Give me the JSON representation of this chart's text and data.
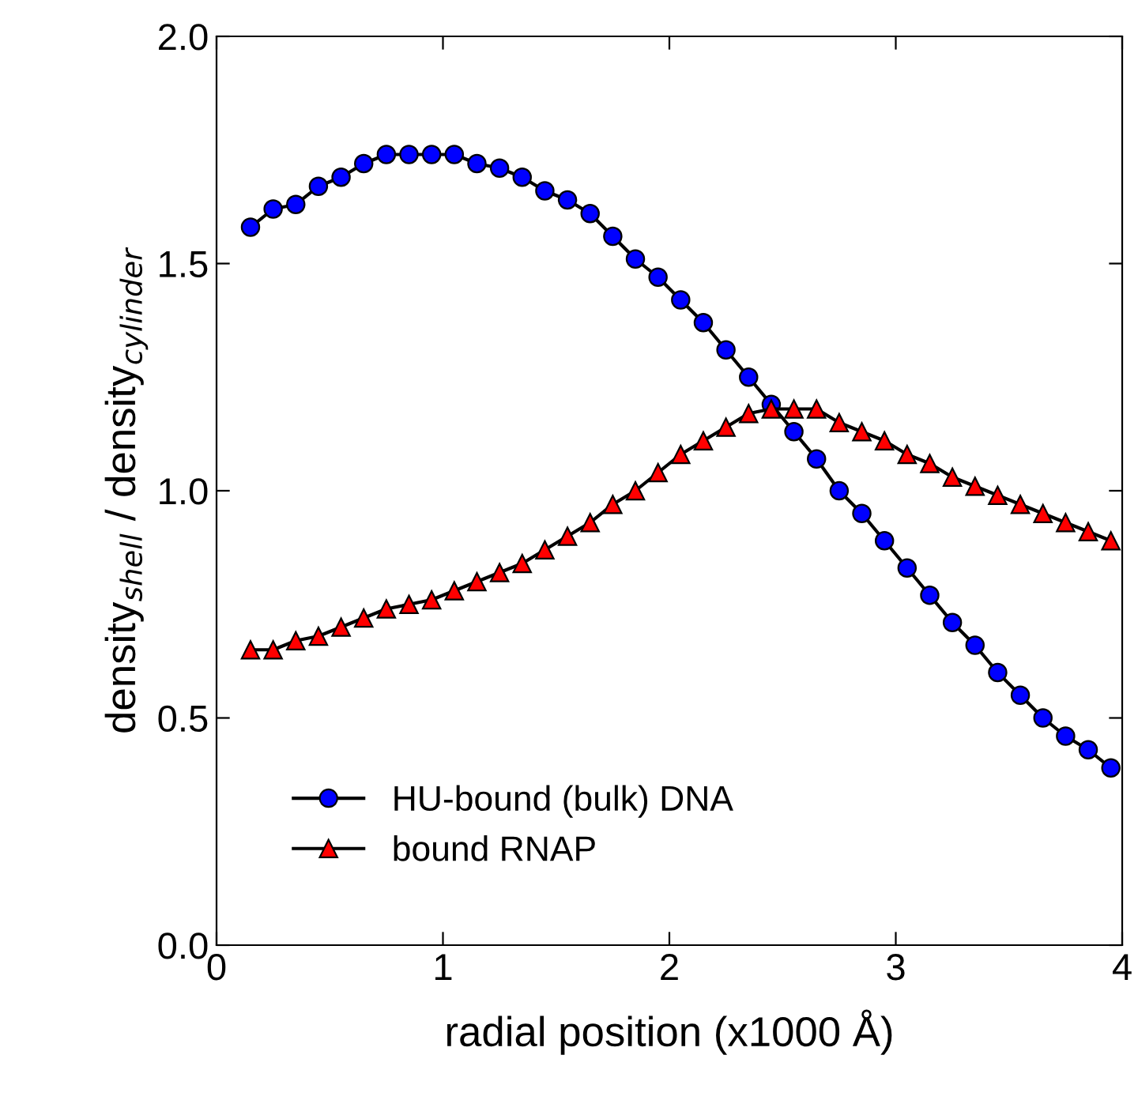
{
  "chart_data": {
    "type": "line",
    "xlabel": "radial position (x1000 Å)",
    "ylabel": "density$_{shell}$ / density$_{cylinder}$",
    "xlim": [
      0,
      4
    ],
    "ylim": [
      0,
      2.0
    ],
    "xticks": [
      0,
      1,
      2,
      3,
      4
    ],
    "yticks": [
      {
        "value": 0,
        "label": "0.0"
      },
      0.5,
      {
        "value": 1,
        "label": "1.0"
      },
      1.5,
      {
        "value": 2,
        "label": "2.0"
      }
    ],
    "x": [
      0.15,
      0.25,
      0.35,
      0.45,
      0.55,
      0.65,
      0.75,
      0.85,
      0.95,
      1.05,
      1.15,
      1.25,
      1.35,
      1.45,
      1.55,
      1.65,
      1.75,
      1.85,
      1.95,
      2.05,
      2.15,
      2.25,
      2.35,
      2.45,
      2.55,
      2.65,
      2.75,
      2.85,
      2.95,
      3.05,
      3.15,
      3.25,
      3.35,
      3.45,
      3.55,
      3.65,
      3.75,
      3.85,
      3.95
    ],
    "series": [
      {
        "name": "HU-bound (bulk) DNA",
        "color": "#0000ff",
        "marker": "circle",
        "values": [
          1.58,
          1.62,
          1.63,
          1.67,
          1.69,
          1.72,
          1.74,
          1.74,
          1.74,
          1.74,
          1.72,
          1.71,
          1.69,
          1.66,
          1.64,
          1.61,
          1.56,
          1.51,
          1.47,
          1.42,
          1.37,
          1.31,
          1.25,
          1.19,
          1.13,
          1.07,
          1.0,
          0.95,
          0.89,
          0.83,
          0.77,
          0.71,
          0.66,
          0.6,
          0.55,
          0.5,
          0.46,
          0.43,
          0.39
        ]
      },
      {
        "name": "bound RNAP",
        "color": "#ff0000",
        "marker": "triangle",
        "values": [
          0.65,
          0.65,
          0.67,
          0.68,
          0.7,
          0.72,
          0.74,
          0.75,
          0.76,
          0.78,
          0.8,
          0.82,
          0.84,
          0.87,
          0.9,
          0.93,
          0.97,
          1.0,
          1.04,
          1.08,
          1.11,
          1.14,
          1.17,
          1.18,
          1.18,
          1.18,
          1.15,
          1.13,
          1.11,
          1.08,
          1.06,
          1.03,
          1.01,
          0.99,
          0.97,
          0.95,
          0.93,
          0.91,
          0.89
        ]
      }
    ],
    "legend": "bottom left",
    "grid": false,
    "line_style": "solid"
  }
}
